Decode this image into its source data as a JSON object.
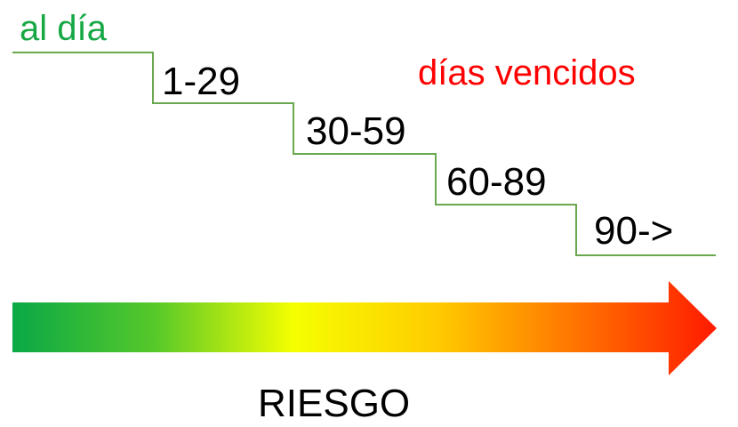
{
  "status_current": "al día",
  "overdue_caption": "días vencidos",
  "buckets": [
    "1-29",
    "30-59",
    "60-89",
    "90->"
  ],
  "risk_label": "RIESGO",
  "colors": {
    "current": "#17a845",
    "overdue": "#ff0000",
    "staircase": "#6aa84f",
    "gradient": [
      "#0aa846",
      "#f2ff00",
      "#ff1a00"
    ]
  }
}
